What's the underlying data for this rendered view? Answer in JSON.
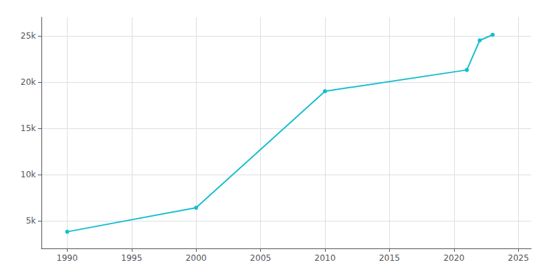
{
  "chart_data": {
    "type": "line",
    "x": [
      1990,
      2000,
      2010,
      2021,
      2022,
      2023
    ],
    "values": [
      3800,
      6400,
      19000,
      21300,
      24500,
      25100
    ],
    "color": "#17BECF",
    "marker": "circle",
    "xlim": [
      1988,
      2026
    ],
    "xticks": [
      1990,
      1995,
      2000,
      2005,
      2010,
      2015,
      2020,
      2025
    ],
    "ylim": [
      2000,
      27000
    ],
    "yticks": [
      {
        "value": 5000,
        "label": "5k"
      },
      {
        "value": 10000,
        "label": "10k"
      },
      {
        "value": 15000,
        "label": "15k"
      },
      {
        "value": 20000,
        "label": "20k"
      },
      {
        "value": 25000,
        "label": "25k"
      }
    ],
    "grid": true
  }
}
